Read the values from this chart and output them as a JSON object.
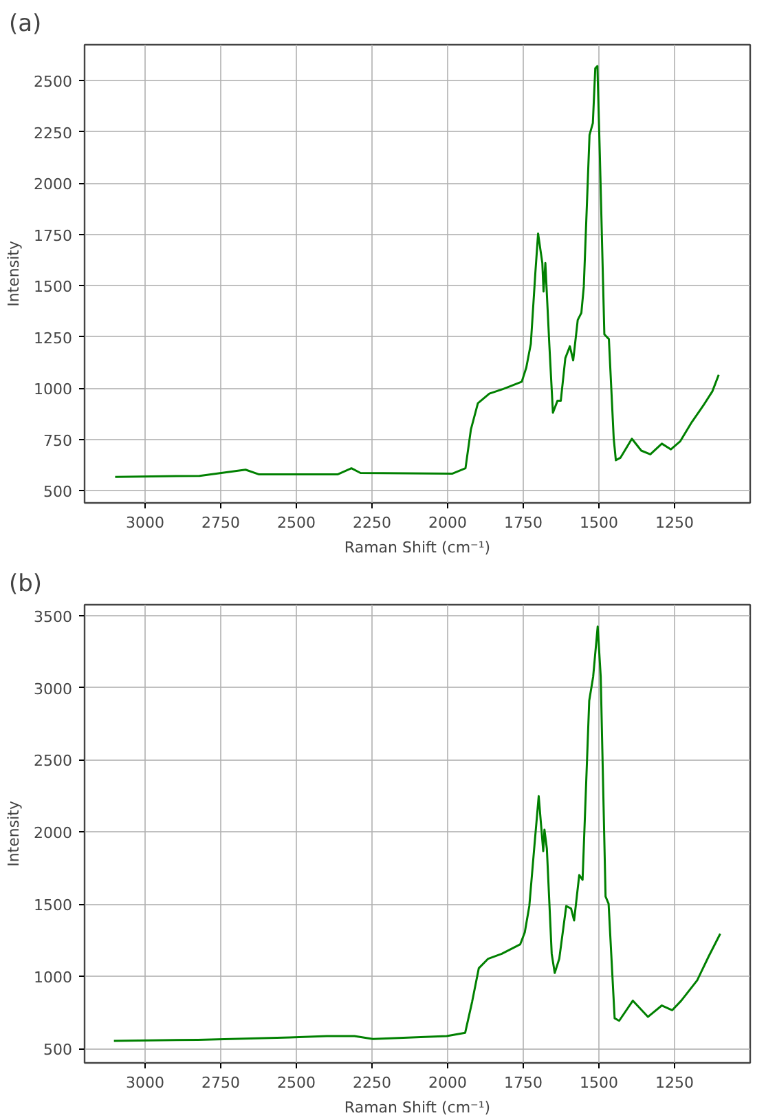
{
  "chart_data": [
    {
      "type": "line",
      "title": "(a)",
      "xlabel": "Raman Shift (cm⁻¹)",
      "ylabel": "Intensity",
      "xlim": [
        3200,
        1000
      ],
      "ylim": [
        440,
        2675
      ],
      "xticks": [
        3000,
        2750,
        2500,
        2250,
        2000,
        1750,
        1500,
        1250
      ],
      "yticks": [
        500,
        750,
        1000,
        1250,
        1500,
        1750,
        2000,
        2250,
        2500
      ],
      "grid": true,
      "series": [
        {
          "color": "#008000",
          "x": [
            3099,
            2820,
            2668,
            2623,
            2364,
            2318,
            2288,
            1984,
            1941,
            1923,
            1900,
            1862,
            1816,
            1755,
            1740,
            1725,
            1710,
            1701,
            1687,
            1683,
            1677,
            1664,
            1652,
            1637,
            1626,
            1611,
            1596,
            1585,
            1570,
            1558,
            1550,
            1531,
            1520,
            1512,
            1505,
            1497,
            1482,
            1467,
            1451,
            1444,
            1429,
            1391,
            1360,
            1330,
            1292,
            1262,
            1231,
            1193,
            1155,
            1125,
            1104
          ],
          "values": [
            567,
            572,
            602,
            579,
            579,
            609,
            586,
            583,
            609,
            799,
            926,
            973,
            996,
            1031,
            1100,
            1216,
            1564,
            1754,
            1610,
            1471,
            1610,
            1216,
            880,
            938,
            938,
            1146,
            1204,
            1135,
            1332,
            1367,
            1494,
            2235,
            2293,
            2560,
            2571,
            2143,
            1262,
            1239,
            753,
            648,
            660,
            753,
            695,
            677,
            729,
            701,
            741,
            834,
            915,
            984,
            1065
          ]
        }
      ]
    },
    {
      "type": "line",
      "title": "(b)",
      "xlabel": "Raman Shift (cm⁻¹)",
      "ylabel": "Intensity",
      "xlim": [
        3200,
        1000
      ],
      "ylim": [
        400,
        3575
      ],
      "xticks": [
        3000,
        2750,
        2500,
        2250,
        2000,
        1750,
        1500,
        1250
      ],
      "yticks": [
        500,
        1000,
        1500,
        2000,
        2500,
        3000,
        3500
      ],
      "grid": true,
      "series": [
        {
          "color": "#008000",
          "x": [
            3103,
            2825,
            2521,
            2399,
            2308,
            2247,
            2003,
            1942,
            1919,
            1897,
            1866,
            1821,
            1760,
            1745,
            1730,
            1714,
            1699,
            1684,
            1680,
            1672,
            1656,
            1646,
            1631,
            1608,
            1592,
            1582,
            1565,
            1554,
            1532,
            1519,
            1504,
            1494,
            1478,
            1468,
            1448,
            1433,
            1388,
            1338,
            1292,
            1258,
            1228,
            1175,
            1137,
            1099
          ],
          "values": [
            553,
            560,
            576,
            586,
            586,
            566,
            586,
            609,
            824,
            1056,
            1122,
            1156,
            1222,
            1305,
            1487,
            1884,
            2248,
            1867,
            2016,
            1884,
            1156,
            1023,
            1122,
            1487,
            1470,
            1387,
            1702,
            1669,
            2910,
            3076,
            3424,
            3076,
            1553,
            1503,
            709,
            692,
            831,
            719,
            798,
            765,
            831,
            973,
            1139,
            1295
          ]
        }
      ]
    }
  ]
}
